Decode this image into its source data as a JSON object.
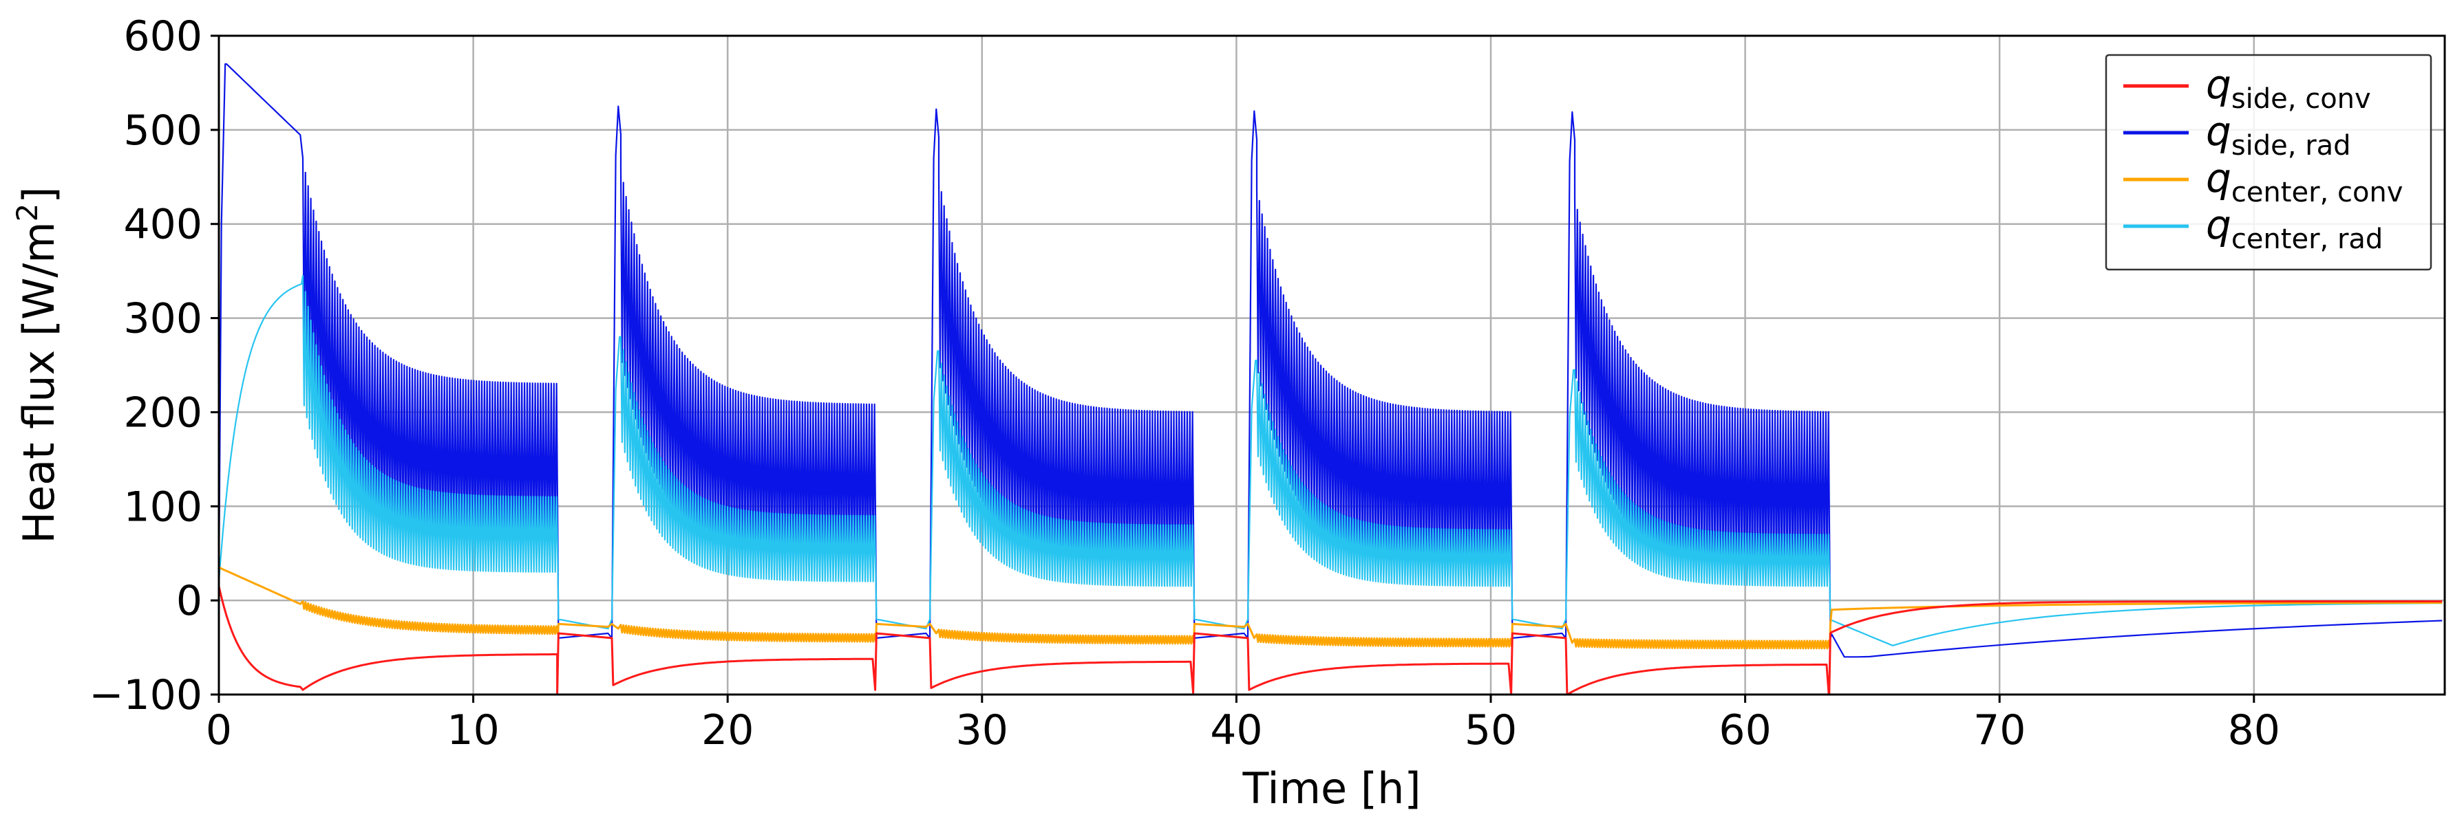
{
  "chart_data": {
    "type": "line",
    "title": "",
    "xlabel": "Time [h]",
    "ylabel_main": "Heat flux [W/m",
    "ylabel_sup": "2",
    "ylabel_close": "]",
    "xlim": [
      0,
      87.5
    ],
    "ylim": [
      -100,
      600
    ],
    "xticks": [
      0,
      10,
      20,
      30,
      40,
      50,
      60,
      70,
      80
    ],
    "yticks": [
      -100,
      0,
      100,
      200,
      300,
      400,
      500,
      600
    ],
    "xtick_labels": [
      "0",
      "10",
      "20",
      "30",
      "40",
      "50",
      "60",
      "70",
      "80"
    ],
    "ytick_labels": [
      "−100",
      "0",
      "100",
      "200",
      "300",
      "400",
      "500",
      "600"
    ],
    "grid": true,
    "legend_position": "top-right",
    "cycles": [
      {
        "start": 0.0,
        "osc_start": 3.3,
        "end": 13.3
      },
      {
        "start": 15.5,
        "osc_start": 15.8,
        "end": 25.8
      },
      {
        "start": 28.0,
        "osc_start": 28.3,
        "end": 38.3
      },
      {
        "start": 40.5,
        "osc_start": 40.8,
        "end": 50.8
      },
      {
        "start": 53.0,
        "osc_start": 53.3,
        "end": 63.3
      }
    ],
    "series": [
      {
        "name_base": "q",
        "name_sub": "side, conv",
        "color": "#ff1a1a",
        "initial_value": 15,
        "cycle_min": [
          -95,
          -90,
          -93,
          -95,
          -100
        ],
        "steady_value": [
          -57,
          -62,
          -65,
          -67,
          -68
        ],
        "between_cycles": -35,
        "end_value": -1,
        "oscillating": false
      },
      {
        "name_base": "q",
        "name_sub": "side, rad",
        "color": "#0a14e6",
        "first_peak": 570,
        "first_plateau": 492,
        "cycle_peaks": [
          490,
          525,
          522,
          520,
          519
        ],
        "osc_upper_start": [
          470,
          460,
          450,
          440,
          430
        ],
        "osc_upper_end": [
          230,
          208,
          200,
          200,
          200
        ],
        "osc_lower_end": [
          50,
          38,
          28,
          25,
          22
        ],
        "between_cycles": -40,
        "after_min": -60,
        "end_value": -18,
        "oscillating": true
      },
      {
        "name_base": "q",
        "name_sub": "center, conv",
        "color": "#ffa500",
        "initial_value": 35,
        "cycle_start": [
          -5,
          -30,
          -35,
          -40,
          -45
        ],
        "steady_value": [
          -32,
          -40,
          -42,
          -45,
          -47
        ],
        "between_cycles": -25,
        "end_value": -2,
        "oscillating": true
      },
      {
        "name_base": "q",
        "name_sub": "center, rad",
        "color": "#27c4f0",
        "first_plateau": 345,
        "cycle_peaks": [
          345,
          280,
          265,
          255,
          245
        ],
        "osc_upper_end": [
          110,
          90,
          80,
          75,
          70
        ],
        "osc_lower_end": [
          30,
          20,
          15,
          15,
          15
        ],
        "between_cycles": -20,
        "after_min": -48,
        "end_value": -2,
        "oscillating": true
      }
    ]
  }
}
